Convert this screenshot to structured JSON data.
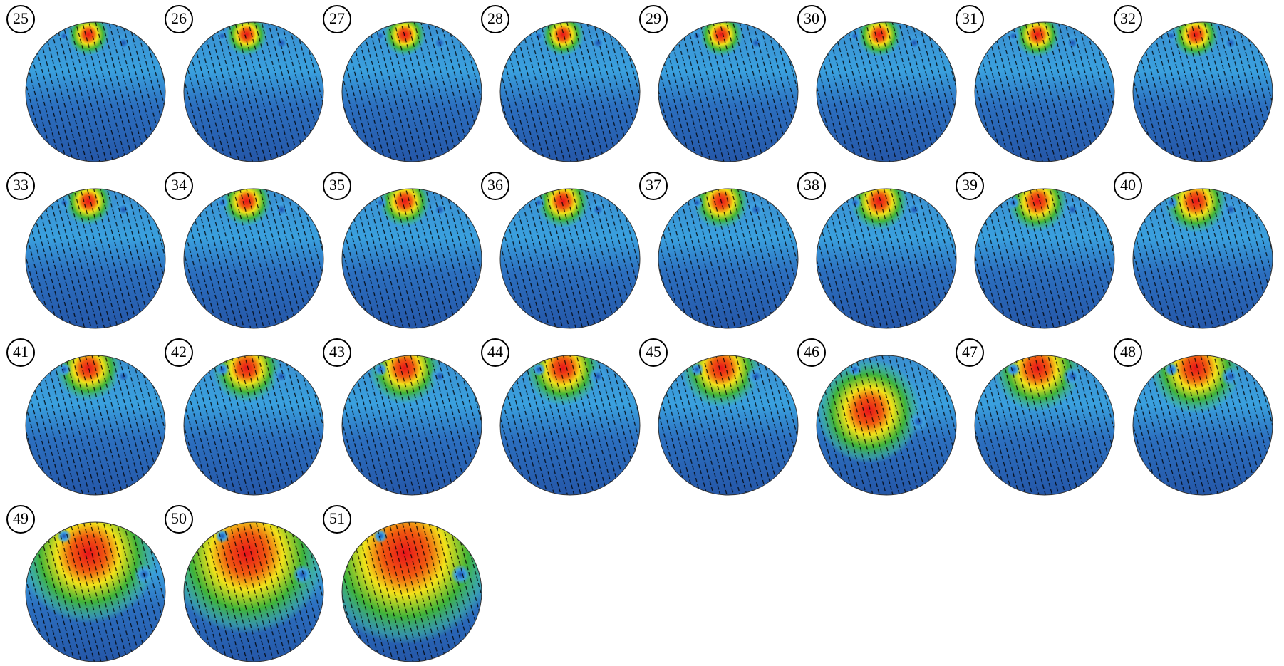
{
  "panels": {
    "labels": [
      "25",
      "26",
      "27",
      "28",
      "29",
      "30",
      "31",
      "32",
      "33",
      "34",
      "35",
      "36",
      "37",
      "38",
      "39",
      "40",
      "41",
      "42",
      "43",
      "44",
      "45",
      "46",
      "47",
      "48",
      "49",
      "50",
      "51"
    ]
  }
}
